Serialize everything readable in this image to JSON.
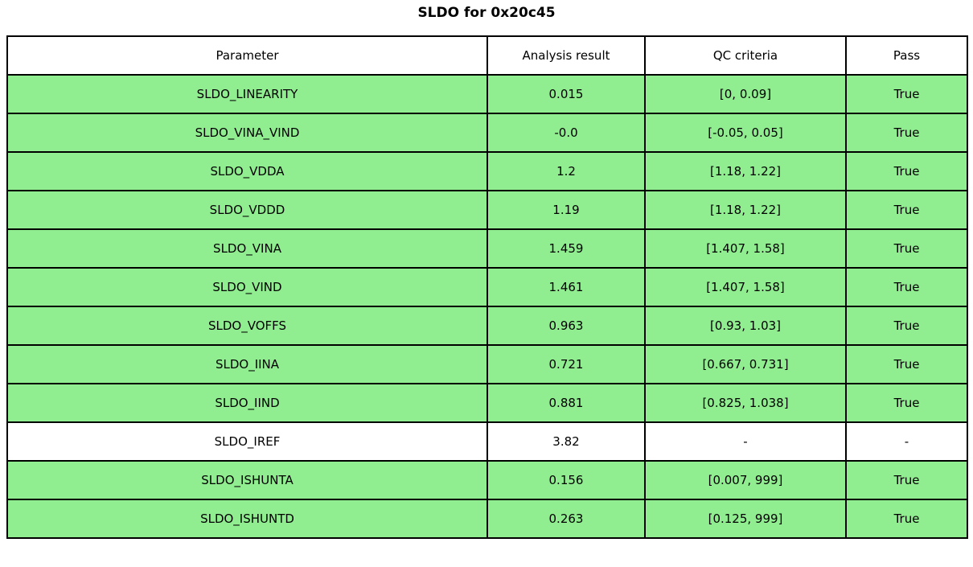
{
  "title": "SLDO for 0x20c45",
  "table": {
    "headers": [
      "Parameter",
      "Analysis result",
      "QC criteria",
      "Pass"
    ],
    "rows": [
      {
        "parameter": "SLDO_LINEARITY",
        "result": "0.015",
        "criteria": "[0, 0.09]",
        "pass": "True",
        "highlight": true
      },
      {
        "parameter": "SLDO_VINA_VIND",
        "result": "-0.0",
        "criteria": "[-0.05, 0.05]",
        "pass": "True",
        "highlight": true
      },
      {
        "parameter": "SLDO_VDDA",
        "result": "1.2",
        "criteria": "[1.18, 1.22]",
        "pass": "True",
        "highlight": true
      },
      {
        "parameter": "SLDO_VDDD",
        "result": "1.19",
        "criteria": "[1.18, 1.22]",
        "pass": "True",
        "highlight": true
      },
      {
        "parameter": "SLDO_VINA",
        "result": "1.459",
        "criteria": "[1.407, 1.58]",
        "pass": "True",
        "highlight": true
      },
      {
        "parameter": "SLDO_VIND",
        "result": "1.461",
        "criteria": "[1.407, 1.58]",
        "pass": "True",
        "highlight": true
      },
      {
        "parameter": "SLDO_VOFFS",
        "result": "0.963",
        "criteria": "[0.93, 1.03]",
        "pass": "True",
        "highlight": true
      },
      {
        "parameter": "SLDO_IINA",
        "result": "0.721",
        "criteria": "[0.667, 0.731]",
        "pass": "True",
        "highlight": true
      },
      {
        "parameter": "SLDO_IIND",
        "result": "0.881",
        "criteria": "[0.825, 1.038]",
        "pass": "True",
        "highlight": true
      },
      {
        "parameter": "SLDO_IREF",
        "result": "3.82",
        "criteria": "-",
        "pass": "-",
        "highlight": false
      },
      {
        "parameter": "SLDO_ISHUNTA",
        "result": "0.156",
        "criteria": "[0.007, 999]",
        "pass": "True",
        "highlight": true
      },
      {
        "parameter": "SLDO_ISHUNTD",
        "result": "0.263",
        "criteria": "[0.125, 999]",
        "pass": "True",
        "highlight": true
      }
    ]
  },
  "colors": {
    "pass_row_bg": "#90EE90",
    "neutral_row_bg": "#FFFFFF",
    "border": "#000000"
  },
  "chart_data": {
    "type": "table",
    "title": "SLDO for 0x20c45",
    "columns": [
      "Parameter",
      "Analysis result",
      "QC criteria",
      "Pass"
    ],
    "rows": [
      [
        "SLDO_LINEARITY",
        "0.015",
        "[0, 0.09]",
        "True"
      ],
      [
        "SLDO_VINA_VIND",
        "-0.0",
        "[-0.05, 0.05]",
        "True"
      ],
      [
        "SLDO_VDDA",
        "1.2",
        "[1.18, 1.22]",
        "True"
      ],
      [
        "SLDO_VDDD",
        "1.19",
        "[1.18, 1.22]",
        "True"
      ],
      [
        "SLDO_VINA",
        "1.459",
        "[1.407, 1.58]",
        "True"
      ],
      [
        "SLDO_VIND",
        "1.461",
        "[1.407, 1.58]",
        "True"
      ],
      [
        "SLDO_VOFFS",
        "0.963",
        "[0.93, 1.03]",
        "True"
      ],
      [
        "SLDO_IINA",
        "0.721",
        "[0.667, 0.731]",
        "True"
      ],
      [
        "SLDO_IIND",
        "0.881",
        "[0.825, 1.038]",
        "True"
      ],
      [
        "SLDO_IREF",
        "3.82",
        "-",
        "-"
      ],
      [
        "SLDO_ISHUNTA",
        "0.156",
        "[0.007, 999]",
        "True"
      ],
      [
        "SLDO_ISHUNTD",
        "0.263",
        "[0.125, 999]",
        "True"
      ]
    ]
  }
}
